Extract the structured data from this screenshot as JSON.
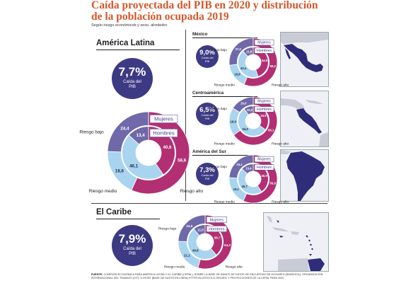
{
  "title": "Caída proyectada del PIB en 2020 y distribución de la población ocupada 2019",
  "subtitle": "Según riesgo económicob y sexo, alrededor",
  "colors": {
    "title": "#d4572a",
    "badge": "#3d3a84",
    "riesgo_alto": "#b32f73",
    "riesgo_medio": "#a8d4ef",
    "riesgo_bajo": "#6f69a9",
    "map_land": "#2f2c7a",
    "map_sea": "#eef0f5"
  },
  "labels": {
    "mujeres": "Mujeres",
    "hombres": "Hombres",
    "riesgo_bajo": "Riesgo bajo",
    "riesgo_medio": "Riesgo medio",
    "riesgo_alto": "Riesgo alto"
  },
  "regions": {
    "latam": {
      "name": "América Latina",
      "pib": "7,7%",
      "pib_label": "Caída del PIB"
    },
    "mexico": {
      "name": "México",
      "pib": "9,0%",
      "pib_label": "Caída del PIB"
    },
    "centro": {
      "name": "Centroamérica",
      "pib": "6,5%",
      "pib_label": "Caída del PIB"
    },
    "sur": {
      "name": "América del Sur",
      "pib": "7,3%",
      "pib_label": "Caída del PIB"
    },
    "caribe": {
      "name": "El Caribe",
      "pib": "7,9%",
      "pib_label": "Caída del PIB"
    }
  },
  "chart_data": [
    {
      "type": "pie",
      "region": "América Latina",
      "title": "",
      "rings": [
        {
          "name": "Mujeres",
          "categories": [
            "Riesgo alto",
            "Riesgo medio",
            "Riesgo bajo"
          ],
          "values": [
            56.6,
            18.6,
            24.4
          ]
        },
        {
          "name": "Hombres",
          "categories": [
            "Riesgo alto",
            "Riesgo medio",
            "Riesgo bajo"
          ],
          "values": [
            40.6,
            46.1,
            13.4
          ]
        }
      ]
    },
    {
      "type": "pie",
      "region": "México",
      "title": "",
      "rings": [
        {
          "name": "Mujeres",
          "categories": [
            "Riesgo alto",
            "Riesgo medio",
            "Riesgo bajo"
          ],
          "values": [
            56.2,
            16.8,
            27.0
          ]
        },
        {
          "name": "Hombres",
          "categories": [
            "Riesgo alto",
            "Riesgo medio",
            "Riesgo bajo"
          ],
          "values": [
            44.8,
            43.4,
            11.8
          ]
        }
      ]
    },
    {
      "type": "pie",
      "region": "Centroamérica",
      "title": "",
      "rings": [
        {
          "name": "Mujeres",
          "categories": [
            "Riesgo alto",
            "Riesgo medio",
            "Riesgo bajo"
          ],
          "values": [
            65.1,
            18.9,
            16.0
          ]
        },
        {
          "name": "Hombres",
          "categories": [
            "Riesgo alto",
            "Riesgo medio",
            "Riesgo bajo"
          ],
          "values": [
            34.9,
            54.9,
            10.2
          ]
        }
      ]
    },
    {
      "type": "pie",
      "region": "América del Sur",
      "title": "",
      "rings": [
        {
          "name": "Mujeres",
          "categories": [
            "Riesgo alto",
            "Riesgo medio",
            "Riesgo bajo"
          ],
          "values": [
            56.8,
            19.1,
            24.1
          ]
        },
        {
          "name": "Hombres",
          "categories": [
            "Riesgo alto",
            "Riesgo medio",
            "Riesgo bajo"
          ],
          "values": [
            40.9,
            45.7,
            13.4
          ]
        }
      ]
    },
    {
      "type": "pie",
      "region": "El Caribe",
      "title": "",
      "rings": [
        {
          "name": "Mujeres",
          "categories": [
            "Riesgo alto",
            "Riesgo medio",
            "Riesgo bajo"
          ],
          "values": [
            54.3,
            21.1,
            24.6
          ]
        },
        {
          "name": "Hombres",
          "categories": [
            "Riesgo alto",
            "Riesgo medio",
            "Riesgo bajo"
          ],
          "values": [
            38.7,
            49.8,
            11.5
          ]
        }
      ]
    }
  ],
  "footer": {
    "label": "FUENTE:",
    "text": "COMISIÓN ECONÓMICA PARA AMÉRICA LATINA Y EL CARIBE (CEPAL), SOBRE LA BASE DE BANCO DE DATOS DE ENCUESTAS DE HOGARES (BADEHOG); ORGANIZACIÓN INTERNACIONAL DEL TRABAJO (OIT), ILOSTAT [BASE DE DATOS EN LÍNEA] HTTPS://ILOSTAT.ILO.ORG/ES/ Y PROYECCIONES DE LA CEPAL PARA 2020"
  }
}
